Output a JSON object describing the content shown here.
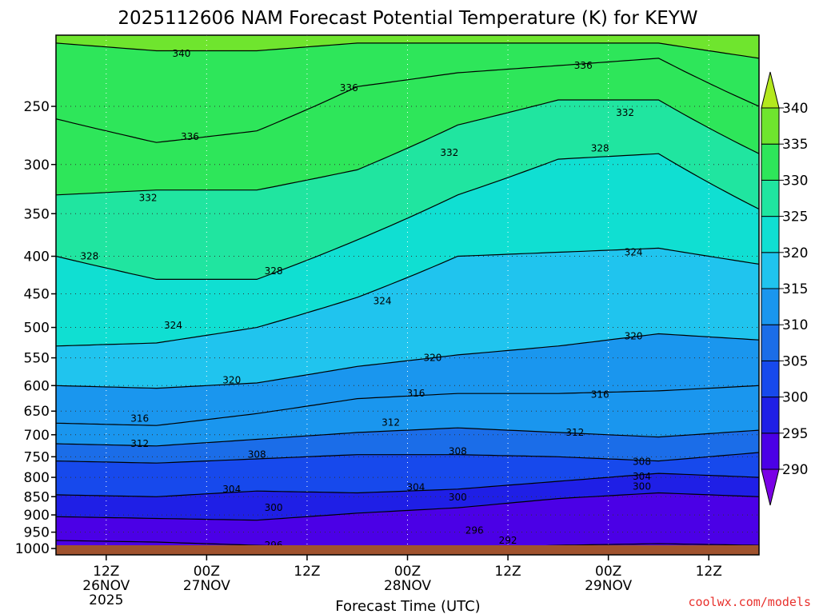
{
  "title": "2025112606 NAM Forecast Potential Temperature (K) for KEYW",
  "xlabel": "Forecast Time (UTC)",
  "credit": "coolwx.com/models",
  "chart_data": {
    "type": "heatmap",
    "y_axis": {
      "label": "",
      "scale": "log",
      "inverted": true,
      "ylim": [
        200,
        1020
      ],
      "ticks": [
        250,
        300,
        350,
        400,
        450,
        500,
        550,
        600,
        650,
        700,
        750,
        800,
        850,
        900,
        950,
        1000
      ]
    },
    "x_axis": {
      "unit": "forecast hour",
      "xlim": [
        0,
        84
      ],
      "ticks": [
        {
          "hour": 6,
          "lines": [
            "12Z",
            "26NOV",
            "2025"
          ]
        },
        {
          "hour": 18,
          "lines": [
            "00Z",
            "27NOV"
          ]
        },
        {
          "hour": 30,
          "lines": [
            "12Z"
          ]
        },
        {
          "hour": 42,
          "lines": [
            "00Z",
            "28NOV"
          ]
        },
        {
          "hour": 54,
          "lines": [
            "12Z"
          ]
        },
        {
          "hour": 66,
          "lines": [
            "00Z",
            "29NOV"
          ]
        },
        {
          "hour": 78,
          "lines": [
            "12Z"
          ]
        }
      ]
    },
    "grid": true,
    "colorbar": {
      "levels": [
        290,
        295,
        300,
        305,
        310,
        315,
        320,
        325,
        330,
        335,
        340
      ],
      "colors": [
        "#7a00e6",
        "#4b00e6",
        "#1f1fe6",
        "#1749ec",
        "#1b6de8",
        "#1a96ee",
        "#20c4ee",
        "#10dfd2",
        "#20e5a0",
        "#2ee65a",
        "#6fe52e",
        "#b3e81e"
      ],
      "extend": "both"
    },
    "x_hours": [
      0,
      12,
      24,
      36,
      48,
      60,
      72,
      84
    ],
    "series": [
      {
        "name": "296",
        "values": [
          975,
          980,
          990,
          1000,
          1000,
          990,
          985,
          990
        ]
      },
      {
        "name": "300",
        "values": [
          905,
          910,
          915,
          895,
          880,
          855,
          840,
          850
        ]
      },
      {
        "name": "304",
        "values": [
          845,
          850,
          835,
          840,
          830,
          810,
          790,
          800
        ]
      },
      {
        "name": "308",
        "values": [
          760,
          765,
          755,
          745,
          745,
          750,
          760,
          740
        ]
      },
      {
        "name": "312",
        "values": [
          720,
          725,
          710,
          695,
          685,
          695,
          705,
          690
        ]
      },
      {
        "name": "316",
        "values": [
          675,
          680,
          655,
          625,
          615,
          615,
          610,
          600
        ]
      },
      {
        "name": "320",
        "values": [
          600,
          605,
          595,
          565,
          545,
          530,
          510,
          520
        ]
      },
      {
        "name": "324",
        "values": [
          530,
          525,
          500,
          455,
          400,
          395,
          390,
          410
        ]
      },
      {
        "name": "328",
        "values": [
          400,
          430,
          430,
          380,
          330,
          295,
          290,
          345
        ]
      },
      {
        "name": "332",
        "values": [
          330,
          325,
          325,
          305,
          265,
          245,
          245,
          290
        ]
      },
      {
        "name": "336",
        "values": [
          260,
          280,
          270,
          235,
          225,
          220,
          215,
          250
        ]
      },
      {
        "name": "340",
        "values": [
          205,
          210,
          210,
          205,
          205,
          205,
          205,
          215
        ]
      }
    ],
    "contour_labels": [
      {
        "text": "340",
        "hour": 15,
        "p": 212
      },
      {
        "text": "336",
        "hour": 16,
        "p": 275
      },
      {
        "text": "336",
        "hour": 35,
        "p": 236
      },
      {
        "text": "336",
        "hour": 63,
        "p": 220
      },
      {
        "text": "332",
        "hour": 11,
        "p": 333
      },
      {
        "text": "332",
        "hour": 47,
        "p": 289
      },
      {
        "text": "332",
        "hour": 68,
        "p": 255
      },
      {
        "text": "328",
        "hour": 4,
        "p": 400
      },
      {
        "text": "328",
        "hour": 26,
        "p": 419
      },
      {
        "text": "328",
        "hour": 65,
        "p": 285
      },
      {
        "text": "324",
        "hour": 14,
        "p": 497
      },
      {
        "text": "324",
        "hour": 39,
        "p": 460
      },
      {
        "text": "324",
        "hour": 69,
        "p": 395
      },
      {
        "text": "320",
        "hour": 21,
        "p": 590
      },
      {
        "text": "320",
        "hour": 45,
        "p": 550
      },
      {
        "text": "320",
        "hour": 69,
        "p": 514
      },
      {
        "text": "316",
        "hour": 10,
        "p": 665
      },
      {
        "text": "316",
        "hour": 43,
        "p": 615
      },
      {
        "text": "316",
        "hour": 65,
        "p": 617
      },
      {
        "text": "312",
        "hour": 10,
        "p": 720
      },
      {
        "text": "312",
        "hour": 40,
        "p": 674
      },
      {
        "text": "312",
        "hour": 62,
        "p": 695
      },
      {
        "text": "308",
        "hour": 24,
        "p": 745
      },
      {
        "text": "308",
        "hour": 48,
        "p": 737
      },
      {
        "text": "308",
        "hour": 70,
        "p": 762
      },
      {
        "text": "304",
        "hour": 21,
        "p": 830
      },
      {
        "text": "304",
        "hour": 43,
        "p": 825
      },
      {
        "text": "304",
        "hour": 70,
        "p": 798
      },
      {
        "text": "300",
        "hour": 26,
        "p": 880
      },
      {
        "text": "300",
        "hour": 48,
        "p": 852
      },
      {
        "text": "300",
        "hour": 70,
        "p": 823
      },
      {
        "text": "296",
        "hour": 26,
        "p": 990
      },
      {
        "text": "296",
        "hour": 50,
        "p": 945
      },
      {
        "text": "292",
        "hour": 54,
        "p": 975
      }
    ]
  }
}
